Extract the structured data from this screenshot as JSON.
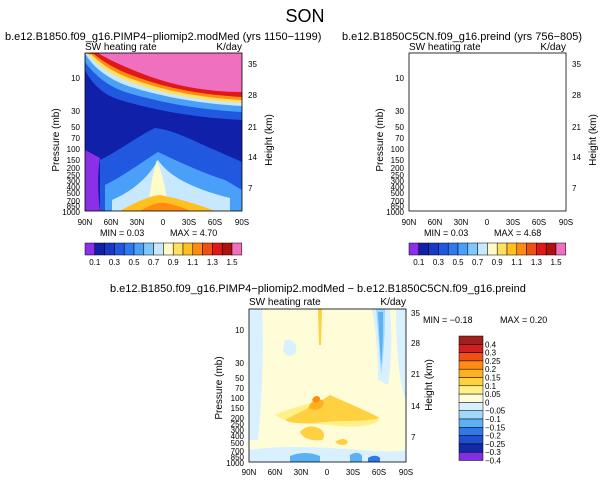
{
  "figure_title": "SON",
  "chart_data": [
    {
      "type": "heatmap",
      "id": "top-left",
      "title": "b.e12.B1850.f09_g16.PIMP4−pliomip2.modMed (yrs 1150−1199)",
      "subtitle_left": "SW heating rate",
      "subtitle_right": "K/day",
      "xlabel": "",
      "ylabel": "Pressure (mb)",
      "ylabel_right": "Height (km)",
      "x_ticks": [
        "90N",
        "60N",
        "30N",
        "0",
        "30S",
        "60S",
        "90S"
      ],
      "y_ticks": [
        "10",
        "30",
        "50",
        "70",
        "100",
        "150",
        "200",
        "250",
        "300",
        "400",
        "500",
        "700",
        "850",
        "1000"
      ],
      "y_ticks_right": [
        "35",
        "28",
        "21",
        "14",
        "7"
      ],
      "min_text": "MIN =  0.03",
      "max_text": "MAX =  4.70",
      "contour_levels": [
        0.1,
        0.2,
        0.3,
        0.4,
        0.5,
        0.6,
        0.7,
        0.8,
        0.9,
        1.0,
        1.1,
        1.2,
        1.3,
        1.4,
        1.5
      ],
      "colorbar_labels": [
        "0.1",
        "0.3",
        "0.5",
        "0.7",
        "0.9",
        "1.1",
        "1.3",
        "1.5"
      ]
    },
    {
      "type": "heatmap",
      "id": "top-right",
      "title": "b.e12.B1850C5CN.f09_g16.preind (yrs 756−805)",
      "subtitle_left": "SW heating rate",
      "subtitle_right": "K/day",
      "xlabel": "",
      "ylabel": "Pressure (mb)",
      "ylabel_right": "Height (km)",
      "x_ticks": [
        "90N",
        "60N",
        "30N",
        "0",
        "30S",
        "60S",
        "90S"
      ],
      "y_ticks": [
        "10",
        "30",
        "50",
        "70",
        "100",
        "150",
        "200",
        "250",
        "300",
        "400",
        "500",
        "700",
        "850",
        "1000"
      ],
      "y_ticks_right": [
        "35",
        "28",
        "21",
        "14",
        "7"
      ],
      "min_text": "MIN =  0.03",
      "max_text": "MAX =  4.68",
      "contour_levels": [
        0.1,
        0.2,
        0.3,
        0.4,
        0.5,
        0.6,
        0.7,
        0.8,
        0.9,
        1.0,
        1.1,
        1.2,
        1.3,
        1.4,
        1.5
      ],
      "colorbar_labels": [
        "0.1",
        "0.3",
        "0.5",
        "0.7",
        "0.9",
        "1.1",
        "1.3",
        "1.5"
      ]
    },
    {
      "type": "heatmap",
      "id": "bottom-diff",
      "title": "b.e12.B1850.f09_g16.PIMP4−pliomip2.modMed − b.e12.B1850C5CN.f09_g16.preind",
      "subtitle_left": "SW heating rate",
      "subtitle_right": "K/day",
      "xlabel": "",
      "ylabel": "Pressure (mb)",
      "ylabel_right": "Height (km)",
      "x_ticks": [
        "90N",
        "60N",
        "30N",
        "0",
        "30S",
        "60S",
        "90S"
      ],
      "y_ticks": [
        "10",
        "30",
        "50",
        "70",
        "100",
        "150",
        "200",
        "250",
        "300",
        "400",
        "500",
        "700",
        "850",
        "1000"
      ],
      "y_ticks_right": [
        "35",
        "28",
        "21",
        "14",
        "7"
      ],
      "min_text": "MIN =  −0.18",
      "max_text": "MAX =   0.20",
      "contour_levels": [
        -0.4,
        -0.3,
        -0.25,
        -0.2,
        -0.15,
        -0.1,
        -0.05,
        0,
        0.05,
        0.1,
        0.15,
        0.2,
        0.25,
        0.3,
        0.4
      ],
      "colorbar_labels": [
        "0.4",
        "0.3",
        "0.25",
        "0.2",
        "0.15",
        "0.1",
        "0.05",
        "0",
        "−0.05",
        "−0.1",
        "−0.15",
        "−0.2",
        "−0.25",
        "−0.3",
        "−0.4"
      ]
    }
  ],
  "colors": {
    "abs_scale": [
      "#8b30e8",
      "#1020a8",
      "#1838c8",
      "#2058e0",
      "#3078f0",
      "#4aa0f8",
      "#80c8fc",
      "#c8e8ff",
      "#fffcc8",
      "#ffe060",
      "#ffc020",
      "#ff8c10",
      "#f05010",
      "#e01818",
      "#b01010",
      "#f070c0"
    ],
    "diff_scale": [
      "#a02020",
      "#d02020",
      "#f05010",
      "#ff8c10",
      "#ffb020",
      "#ffd040",
      "#fff088",
      "#fffcd8",
      "#d8f0ff",
      "#a0d8fa",
      "#5cb0f4",
      "#3078e8",
      "#2050d0",
      "#1428a8",
      "#8030e0"
    ]
  }
}
